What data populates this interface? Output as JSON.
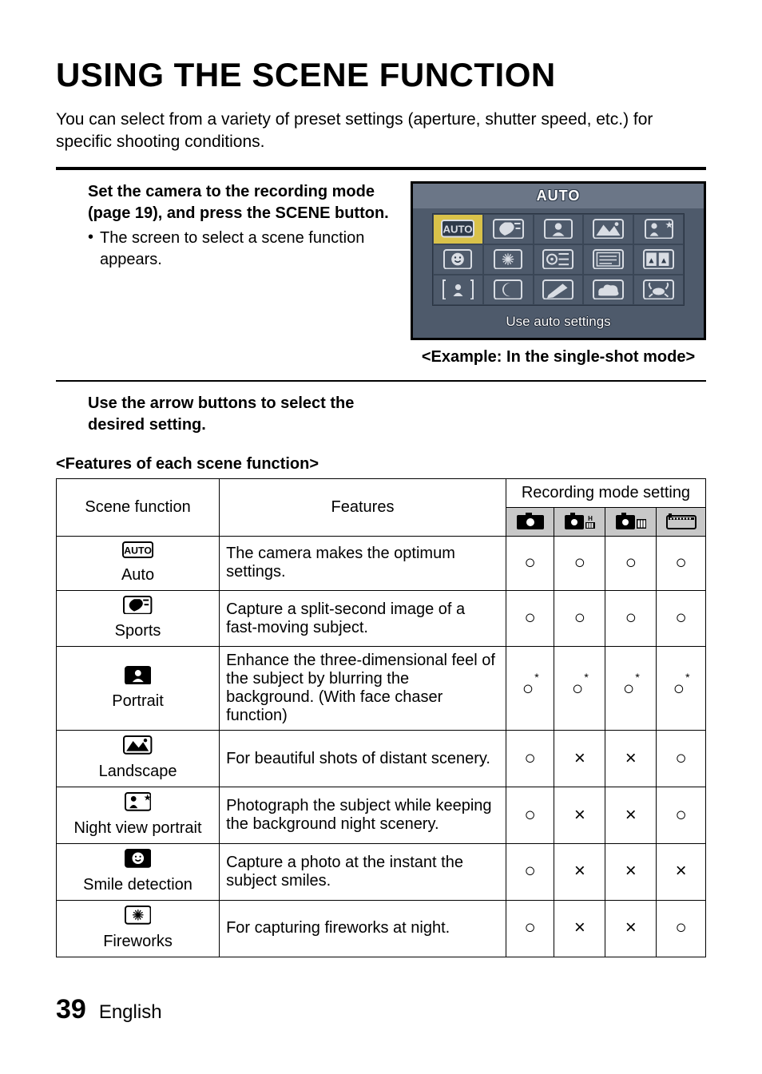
{
  "title": "USING THE SCENE FUNCTION",
  "intro": "You can select from a variety of preset settings (aperture, shutter speed, etc.) for specific shooting conditions.",
  "step1": {
    "bold": "Set the camera to the recording mode (page 19), and press the SCENE button.",
    "bullet": "The screen to select a scene function appears."
  },
  "step2": {
    "bold": "Use the arrow buttons to select the desired setting."
  },
  "screenshot": {
    "header": "AUTO",
    "footer": "Use auto settings",
    "rows": 3,
    "cols": 5,
    "selected_index": 0,
    "bg_color": "#4e5a6b",
    "header_bg": "#6b7687",
    "sel_color": "#d9c24a",
    "border_color": "#2a3442"
  },
  "example_caption": "<Example: In the single-shot mode>",
  "features_title": "<Features of each scene function>",
  "table": {
    "headers": {
      "scene": "Scene function",
      "features": "Features",
      "modes": "Recording mode setting"
    },
    "mode_icons": [
      "single-shot",
      "sequential-9",
      "sequential",
      "video"
    ],
    "rows": [
      {
        "icon": "auto",
        "label": "Auto",
        "feature": "The camera makes the optimum settings.",
        "marks": [
          "○",
          "○",
          "○",
          "○"
        ]
      },
      {
        "icon": "sports",
        "label": "Sports",
        "feature": "Capture a split-second image of a fast-moving subject.",
        "marks": [
          "○",
          "○",
          "○",
          "○"
        ]
      },
      {
        "icon": "portrait",
        "label": "Portrait",
        "feature": "Enhance the three-dimensional feel of the subject by blurring the background. (With face chaser function)",
        "marks": [
          "○*",
          "○*",
          "○*",
          "○*"
        ]
      },
      {
        "icon": "landscape",
        "label": "Landscape",
        "feature": "For beautiful shots of distant scenery.",
        "marks": [
          "○",
          "×",
          "×",
          "○"
        ]
      },
      {
        "icon": "night",
        "label": "Night view portrait",
        "feature": "Photograph the subject while keeping the background night scenery.",
        "marks": [
          "○",
          "×",
          "×",
          "○"
        ]
      },
      {
        "icon": "smile",
        "label": "Smile detection",
        "feature": "Capture a photo at the instant the subject smiles.",
        "marks": [
          "○",
          "×",
          "×",
          "×"
        ]
      },
      {
        "icon": "fireworks",
        "label": "Fireworks",
        "feature": "For capturing fireworks at night.",
        "marks": [
          "○",
          "×",
          "×",
          "○"
        ]
      }
    ]
  },
  "footer": {
    "page": "39",
    "lang": "English"
  }
}
